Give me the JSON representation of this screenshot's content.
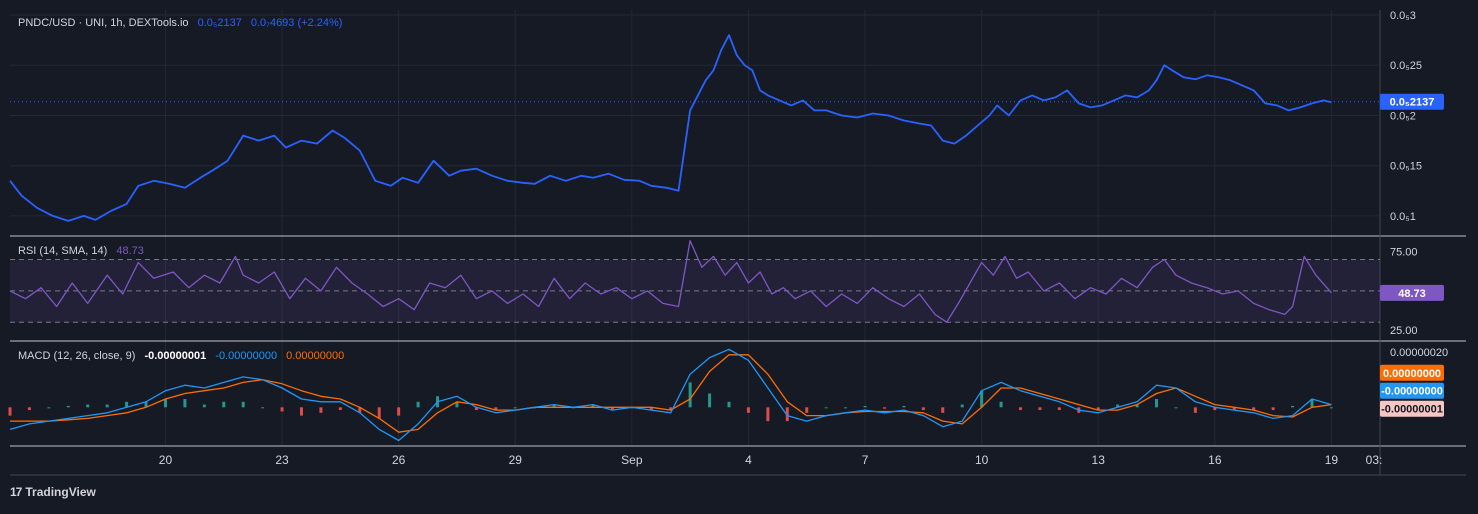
{
  "chart_data": {
    "type": "line",
    "theme": {
      "background": "#161a25",
      "price_line": "#2962ff",
      "rsi_line": "#7e57c2",
      "rsi_band": "#7e57c2",
      "macd_line": "#2196f3",
      "signal_line": "#ff6d00",
      "hist_up": "#26a69a",
      "hist_down": "#ef5350",
      "text": "#d1d4dc",
      "grid": "#242833"
    },
    "x_ticks": [
      "20",
      "23",
      "26",
      "29",
      "Sep",
      "4",
      "7",
      "10",
      "13",
      "16",
      "19",
      "03:"
    ],
    "price": {
      "legend_symbol": "PNDC/USD · UNI, 1h, DEXTools.io",
      "legend_last": "0.0₅2137",
      "legend_change": "0.0₇4693 (+2.24%)",
      "y_ticks": [
        "0.0₅3",
        "0.0₅25",
        "0.0₅2",
        "0.0₅15",
        "0.0₅1"
      ],
      "y_tick_values": [
        3.0,
        2.5,
        2.0,
        1.5,
        1.0
      ],
      "ylim": [
        0.8,
        3.05
      ],
      "last_value": 2.137,
      "last_label": "0.0₅2137",
      "unit_note": "values in units of 1e-6 USD",
      "points": [
        [
          16.0,
          1.35
        ],
        [
          16.3,
          1.2
        ],
        [
          16.7,
          1.08
        ],
        [
          17.1,
          1.0
        ],
        [
          17.5,
          0.95
        ],
        [
          17.9,
          1.0
        ],
        [
          18.2,
          0.96
        ],
        [
          18.6,
          1.05
        ],
        [
          19.0,
          1.12
        ],
        [
          19.3,
          1.3
        ],
        [
          19.7,
          1.35
        ],
        [
          20.1,
          1.32
        ],
        [
          20.5,
          1.28
        ],
        [
          20.9,
          1.38
        ],
        [
          21.2,
          1.45
        ],
        [
          21.6,
          1.55
        ],
        [
          22.0,
          1.8
        ],
        [
          22.4,
          1.75
        ],
        [
          22.8,
          1.8
        ],
        [
          23.1,
          1.68
        ],
        [
          23.5,
          1.75
        ],
        [
          23.9,
          1.72
        ],
        [
          24.3,
          1.85
        ],
        [
          24.6,
          1.78
        ],
        [
          25.0,
          1.65
        ],
        [
          25.4,
          1.35
        ],
        [
          25.8,
          1.3
        ],
        [
          26.1,
          1.38
        ],
        [
          26.5,
          1.33
        ],
        [
          26.9,
          1.55
        ],
        [
          27.3,
          1.4
        ],
        [
          27.6,
          1.45
        ],
        [
          28.0,
          1.47
        ],
        [
          28.4,
          1.4
        ],
        [
          28.8,
          1.35
        ],
        [
          29.2,
          1.33
        ],
        [
          29.5,
          1.32
        ],
        [
          29.9,
          1.4
        ],
        [
          30.3,
          1.35
        ],
        [
          30.7,
          1.4
        ],
        [
          31.0,
          1.38
        ],
        [
          31.4,
          1.42
        ],
        [
          31.8,
          1.36
        ],
        [
          32.2,
          1.35
        ],
        [
          32.5,
          1.3
        ],
        [
          32.9,
          1.28
        ],
        [
          33.2,
          1.25
        ],
        [
          33.5,
          2.05
        ],
        [
          33.7,
          2.2
        ],
        [
          33.9,
          2.35
        ],
        [
          34.1,
          2.45
        ],
        [
          34.3,
          2.65
        ],
        [
          34.5,
          2.8
        ],
        [
          34.7,
          2.6
        ],
        [
          34.9,
          2.5
        ],
        [
          35.1,
          2.45
        ],
        [
          35.3,
          2.25
        ],
        [
          35.5,
          2.2
        ],
        [
          35.8,
          2.15
        ],
        [
          36.1,
          2.1
        ],
        [
          36.4,
          2.15
        ],
        [
          36.7,
          2.05
        ],
        [
          37.0,
          2.05
        ],
        [
          37.4,
          2.0
        ],
        [
          37.8,
          1.98
        ],
        [
          38.2,
          2.02
        ],
        [
          38.6,
          2.0
        ],
        [
          39.0,
          1.95
        ],
        [
          39.4,
          1.92
        ],
        [
          39.7,
          1.9
        ],
        [
          40.0,
          1.75
        ],
        [
          40.3,
          1.72
        ],
        [
          40.6,
          1.8
        ],
        [
          40.9,
          1.9
        ],
        [
          41.2,
          2.0
        ],
        [
          41.4,
          2.1
        ],
        [
          41.7,
          2.0
        ],
        [
          42.0,
          2.15
        ],
        [
          42.3,
          2.2
        ],
        [
          42.6,
          2.15
        ],
        [
          42.9,
          2.18
        ],
        [
          43.2,
          2.25
        ],
        [
          43.5,
          2.12
        ],
        [
          43.8,
          2.08
        ],
        [
          44.1,
          2.1
        ],
        [
          44.4,
          2.15
        ],
        [
          44.7,
          2.2
        ],
        [
          45.0,
          2.18
        ],
        [
          45.3,
          2.25
        ],
        [
          45.5,
          2.35
        ],
        [
          45.7,
          2.5
        ],
        [
          45.9,
          2.45
        ],
        [
          46.2,
          2.38
        ],
        [
          46.5,
          2.36
        ],
        [
          46.8,
          2.4
        ],
        [
          47.1,
          2.38
        ],
        [
          47.4,
          2.35
        ],
        [
          47.7,
          2.3
        ],
        [
          48.0,
          2.25
        ],
        [
          48.3,
          2.12
        ],
        [
          48.6,
          2.1
        ],
        [
          48.9,
          2.05
        ],
        [
          49.2,
          2.08
        ],
        [
          49.5,
          2.12
        ],
        [
          49.8,
          2.15
        ],
        [
          50.0,
          2.13
        ]
      ]
    },
    "rsi": {
      "legend_title": "RSI (14, SMA, 14)",
      "legend_value": "48.73",
      "y_ticks": [
        "75.00",
        "25.00"
      ],
      "y_tick_values": [
        75,
        25
      ],
      "band_upper": 70,
      "band_lower": 30,
      "mid": 50,
      "ylim": [
        18,
        85
      ],
      "last_value": 48.73,
      "last_label": "48.73",
      "points": [
        [
          16.0,
          50
        ],
        [
          16.4,
          45
        ],
        [
          16.8,
          52
        ],
        [
          17.2,
          40
        ],
        [
          17.6,
          55
        ],
        [
          18.0,
          42
        ],
        [
          18.5,
          60
        ],
        [
          18.9,
          48
        ],
        [
          19.3,
          68
        ],
        [
          19.7,
          58
        ],
        [
          20.2,
          62
        ],
        [
          20.6,
          52
        ],
        [
          21.0,
          60
        ],
        [
          21.4,
          55
        ],
        [
          21.8,
          72
        ],
        [
          22.0,
          60
        ],
        [
          22.4,
          55
        ],
        [
          22.8,
          62
        ],
        [
          23.2,
          45
        ],
        [
          23.6,
          58
        ],
        [
          24.0,
          50
        ],
        [
          24.4,
          65
        ],
        [
          24.8,
          55
        ],
        [
          25.2,
          48
        ],
        [
          25.6,
          40
        ],
        [
          26.0,
          45
        ],
        [
          26.4,
          38
        ],
        [
          26.8,
          55
        ],
        [
          27.2,
          52
        ],
        [
          27.6,
          60
        ],
        [
          28.0,
          45
        ],
        [
          28.4,
          50
        ],
        [
          28.8,
          42
        ],
        [
          29.2,
          48
        ],
        [
          29.6,
          40
        ],
        [
          30.0,
          58
        ],
        [
          30.4,
          45
        ],
        [
          30.8,
          55
        ],
        [
          31.2,
          48
        ],
        [
          31.6,
          52
        ],
        [
          32.0,
          45
        ],
        [
          32.4,
          50
        ],
        [
          32.8,
          42
        ],
        [
          33.2,
          40
        ],
        [
          33.5,
          82
        ],
        [
          33.8,
          65
        ],
        [
          34.1,
          72
        ],
        [
          34.4,
          60
        ],
        [
          34.7,
          68
        ],
        [
          35.0,
          55
        ],
        [
          35.3,
          62
        ],
        [
          35.6,
          48
        ],
        [
          35.9,
          52
        ],
        [
          36.2,
          45
        ],
        [
          36.6,
          50
        ],
        [
          37.0,
          40
        ],
        [
          37.4,
          48
        ],
        [
          37.8,
          42
        ],
        [
          38.2,
          52
        ],
        [
          38.6,
          45
        ],
        [
          39.0,
          40
        ],
        [
          39.4,
          48
        ],
        [
          39.8,
          35
        ],
        [
          40.1,
          30
        ],
        [
          40.4,
          42
        ],
        [
          40.7,
          55
        ],
        [
          41.0,
          68
        ],
        [
          41.3,
          60
        ],
        [
          41.6,
          72
        ],
        [
          41.9,
          58
        ],
        [
          42.2,
          62
        ],
        [
          42.6,
          50
        ],
        [
          43.0,
          55
        ],
        [
          43.4,
          45
        ],
        [
          43.8,
          52
        ],
        [
          44.2,
          48
        ],
        [
          44.6,
          58
        ],
        [
          45.0,
          52
        ],
        [
          45.4,
          65
        ],
        [
          45.7,
          70
        ],
        [
          46.0,
          60
        ],
        [
          46.4,
          55
        ],
        [
          46.8,
          52
        ],
        [
          47.2,
          48
        ],
        [
          47.6,
          50
        ],
        [
          48.0,
          42
        ],
        [
          48.4,
          38
        ],
        [
          48.8,
          35
        ],
        [
          49.0,
          40
        ],
        [
          49.3,
          72
        ],
        [
          49.6,
          60
        ],
        [
          50.0,
          48.73
        ]
      ]
    },
    "macd": {
      "legend_title": "MACD (12, 26, close, 9)",
      "legend_hist": "-0.00000001",
      "legend_macd": "-0.00000000",
      "legend_signal": "0.00000000",
      "y_ticks": [
        "0.00000020"
      ],
      "y_tick_values": [
        0.2
      ],
      "ylim": [
        -0.14,
        0.24
      ],
      "unit_note": "values in units of 1e-6",
      "badges": [
        {
          "label": "0.00000000",
          "value": 0.125,
          "color": "#ff6d00",
          "text_color": "#ffffff"
        },
        {
          "label": "-0.00000000",
          "value": 0.06,
          "color": "#2196f3",
          "text_color": "#ffffff"
        },
        {
          "label": "-0.00000001",
          "value": -0.005,
          "color": "#f8c6c2",
          "text_color": "#131722"
        }
      ],
      "macd_points": [
        [
          16.0,
          -0.08
        ],
        [
          16.5,
          -0.06
        ],
        [
          17.0,
          -0.05
        ],
        [
          17.5,
          -0.04
        ],
        [
          18.0,
          -0.03
        ],
        [
          18.5,
          -0.02
        ],
        [
          19.0,
          0.0
        ],
        [
          19.5,
          0.02
        ],
        [
          20.0,
          0.06
        ],
        [
          20.5,
          0.08
        ],
        [
          21.0,
          0.07
        ],
        [
          21.5,
          0.09
        ],
        [
          22.0,
          0.11
        ],
        [
          22.5,
          0.1
        ],
        [
          23.0,
          0.07
        ],
        [
          23.5,
          0.03
        ],
        [
          24.0,
          0.02
        ],
        [
          24.5,
          0.02
        ],
        [
          25.0,
          -0.02
        ],
        [
          25.5,
          -0.08
        ],
        [
          26.0,
          -0.12
        ],
        [
          26.5,
          -0.06
        ],
        [
          27.0,
          0.02
        ],
        [
          27.5,
          0.04
        ],
        [
          28.0,
          0.0
        ],
        [
          28.5,
          -0.02
        ],
        [
          29.0,
          -0.01
        ],
        [
          29.5,
          0.0
        ],
        [
          30.0,
          0.01
        ],
        [
          30.5,
          0.0
        ],
        [
          31.0,
          0.01
        ],
        [
          31.5,
          -0.01
        ],
        [
          32.0,
          0.0
        ],
        [
          32.5,
          -0.01
        ],
        [
          33.0,
          -0.02
        ],
        [
          33.5,
          0.12
        ],
        [
          34.0,
          0.18
        ],
        [
          34.5,
          0.21
        ],
        [
          35.0,
          0.17
        ],
        [
          35.5,
          0.07
        ],
        [
          36.0,
          -0.03
        ],
        [
          36.5,
          -0.05
        ],
        [
          37.0,
          -0.03
        ],
        [
          37.5,
          -0.02
        ],
        [
          38.0,
          -0.01
        ],
        [
          38.5,
          -0.02
        ],
        [
          39.0,
          -0.01
        ],
        [
          39.5,
          -0.03
        ],
        [
          40.0,
          -0.07
        ],
        [
          40.5,
          -0.05
        ],
        [
          41.0,
          0.06
        ],
        [
          41.5,
          0.09
        ],
        [
          42.0,
          0.06
        ],
        [
          42.5,
          0.04
        ],
        [
          43.0,
          0.02
        ],
        [
          43.5,
          -0.01
        ],
        [
          44.0,
          -0.02
        ],
        [
          44.5,
          0.0
        ],
        [
          45.0,
          0.02
        ],
        [
          45.5,
          0.08
        ],
        [
          46.0,
          0.07
        ],
        [
          46.5,
          0.02
        ],
        [
          47.0,
          0.0
        ],
        [
          47.5,
          -0.01
        ],
        [
          48.0,
          -0.02
        ],
        [
          48.5,
          -0.04
        ],
        [
          49.0,
          -0.03
        ],
        [
          49.5,
          0.03
        ],
        [
          50.0,
          0.01
        ]
      ],
      "signal_points": [
        [
          16.0,
          -0.05
        ],
        [
          16.5,
          -0.05
        ],
        [
          17.0,
          -0.05
        ],
        [
          17.5,
          -0.045
        ],
        [
          18.0,
          -0.04
        ],
        [
          18.5,
          -0.03
        ],
        [
          19.0,
          -0.02
        ],
        [
          19.5,
          0.0
        ],
        [
          20.0,
          0.03
        ],
        [
          20.5,
          0.05
        ],
        [
          21.0,
          0.06
        ],
        [
          21.5,
          0.07
        ],
        [
          22.0,
          0.09
        ],
        [
          22.5,
          0.1
        ],
        [
          23.0,
          0.085
        ],
        [
          23.5,
          0.06
        ],
        [
          24.0,
          0.04
        ],
        [
          24.5,
          0.03
        ],
        [
          25.0,
          0.0
        ],
        [
          25.5,
          -0.04
        ],
        [
          26.0,
          -0.09
        ],
        [
          26.5,
          -0.08
        ],
        [
          27.0,
          -0.02
        ],
        [
          27.5,
          0.02
        ],
        [
          28.0,
          0.01
        ],
        [
          28.5,
          -0.01
        ],
        [
          29.0,
          -0.01
        ],
        [
          29.5,
          0.0
        ],
        [
          30.0,
          0.0
        ],
        [
          30.5,
          0.0
        ],
        [
          31.0,
          0.0
        ],
        [
          31.5,
          0.0
        ],
        [
          32.0,
          0.0
        ],
        [
          32.5,
          0.0
        ],
        [
          33.0,
          -0.01
        ],
        [
          33.5,
          0.03
        ],
        [
          34.0,
          0.13
        ],
        [
          34.5,
          0.19
        ],
        [
          35.0,
          0.19
        ],
        [
          35.5,
          0.12
        ],
        [
          36.0,
          0.02
        ],
        [
          36.5,
          -0.03
        ],
        [
          37.0,
          -0.03
        ],
        [
          37.5,
          -0.02
        ],
        [
          38.0,
          -0.015
        ],
        [
          38.5,
          -0.015
        ],
        [
          39.0,
          -0.015
        ],
        [
          39.5,
          -0.02
        ],
        [
          40.0,
          -0.05
        ],
        [
          40.5,
          -0.06
        ],
        [
          41.0,
          0.0
        ],
        [
          41.5,
          0.07
        ],
        [
          42.0,
          0.07
        ],
        [
          42.5,
          0.05
        ],
        [
          43.0,
          0.03
        ],
        [
          43.5,
          0.01
        ],
        [
          44.0,
          -0.01
        ],
        [
          44.5,
          -0.01
        ],
        [
          45.0,
          0.01
        ],
        [
          45.5,
          0.05
        ],
        [
          46.0,
          0.07
        ],
        [
          46.5,
          0.04
        ],
        [
          47.0,
          0.01
        ],
        [
          47.5,
          0.0
        ],
        [
          48.0,
          -0.01
        ],
        [
          48.5,
          -0.03
        ],
        [
          49.0,
          -0.035
        ],
        [
          49.5,
          0.0
        ],
        [
          50.0,
          0.01
        ]
      ]
    }
  },
  "branding": {
    "logo": "17",
    "name": "TradingView"
  }
}
